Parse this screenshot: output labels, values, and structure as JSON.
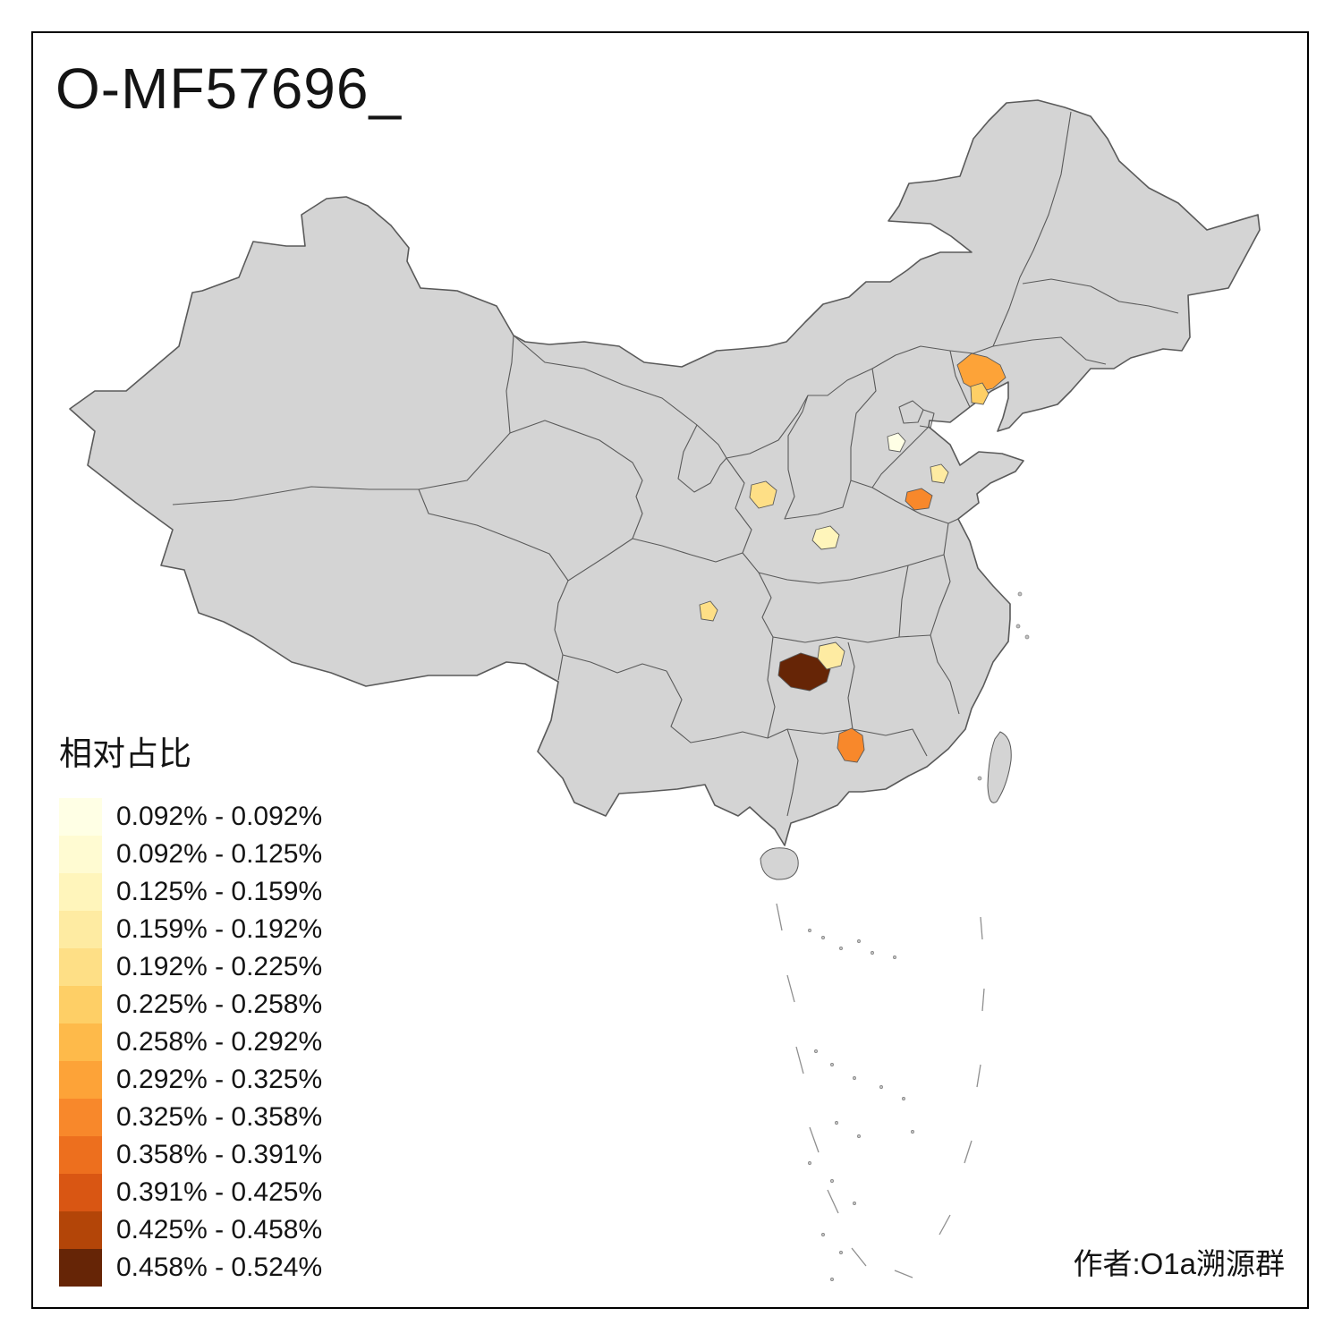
{
  "title": "O-MF57696_",
  "attribution": "作者:O1a溯源群",
  "legend": {
    "title": "相对占比",
    "entries": [
      {
        "label": "0.092% - 0.092%",
        "color": "#FFFFE5"
      },
      {
        "label": "0.092% - 0.125%",
        "color": "#FFFBD2"
      },
      {
        "label": "0.125% - 0.159%",
        "color": "#FFF5BB"
      },
      {
        "label": "0.159% - 0.192%",
        "color": "#FEEBA2"
      },
      {
        "label": "0.192% - 0.225%",
        "color": "#FEDF86"
      },
      {
        "label": "0.225% - 0.258%",
        "color": "#FECF66"
      },
      {
        "label": "0.258% - 0.292%",
        "color": "#FEBA4A"
      },
      {
        "label": "0.292% - 0.325%",
        "color": "#FDA338"
      },
      {
        "label": "0.325% - 0.358%",
        "color": "#F8882B"
      },
      {
        "label": "0.358% - 0.391%",
        "color": "#ED6F1E"
      },
      {
        "label": "0.391% - 0.425%",
        "color": "#D95613"
      },
      {
        "label": "0.425% - 0.458%",
        "color": "#B34508"
      },
      {
        "label": "0.458% - 0.524%",
        "color": "#662506"
      }
    ]
  },
  "map": {
    "land_color": "#D4D4D4",
    "border_color": "#5A5A5A",
    "sea_color": "#FFFFFF",
    "highlights": [
      {
        "name": "region-1",
        "color": "#FDA338"
      },
      {
        "name": "region-2",
        "color": "#FECF66"
      },
      {
        "name": "region-3",
        "color": "#FFFFE5"
      },
      {
        "name": "region-4",
        "color": "#FEEBA2"
      },
      {
        "name": "region-5",
        "color": "#F8882B"
      },
      {
        "name": "region-6",
        "color": "#FEDF86"
      },
      {
        "name": "region-7",
        "color": "#FFF5BB"
      },
      {
        "name": "region-8",
        "color": "#FEDF86"
      },
      {
        "name": "region-9",
        "color": "#662506"
      },
      {
        "name": "region-10",
        "color": "#FEEBA2"
      },
      {
        "name": "region-11",
        "color": "#F8882B"
      }
    ]
  }
}
